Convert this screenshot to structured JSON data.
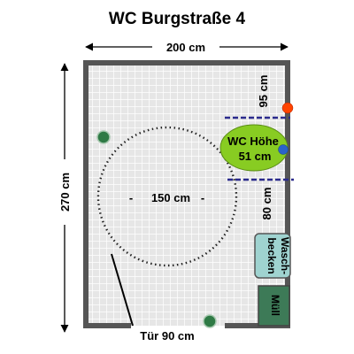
{
  "title": "WC Burgstraße 4",
  "dimensions": {
    "width": "200 cm",
    "height": "270 cm",
    "turning_circle": "150 cm",
    "wc_side_clearance": "95 cm",
    "wc_front_clearance": "80 cm",
    "door": "Tür 90 cm"
  },
  "fixtures": {
    "wc_line1": "WC Höhe",
    "wc_line2": "51 cm",
    "sink_line1": "Wasch-",
    "sink_line2": "becken",
    "bin": "Müll"
  },
  "colors": {
    "wall": "#555555",
    "floor": "#e6e6e6",
    "grid_line": "#ffffff",
    "wc": "#88cc22",
    "sink": "#9fd3d0",
    "bin": "#3d7a57",
    "grab_bar": "#2a2a8c",
    "green_dot": "#2f7a45",
    "red_dot": "#ff4400",
    "blue_dot": "#2b63c9"
  }
}
